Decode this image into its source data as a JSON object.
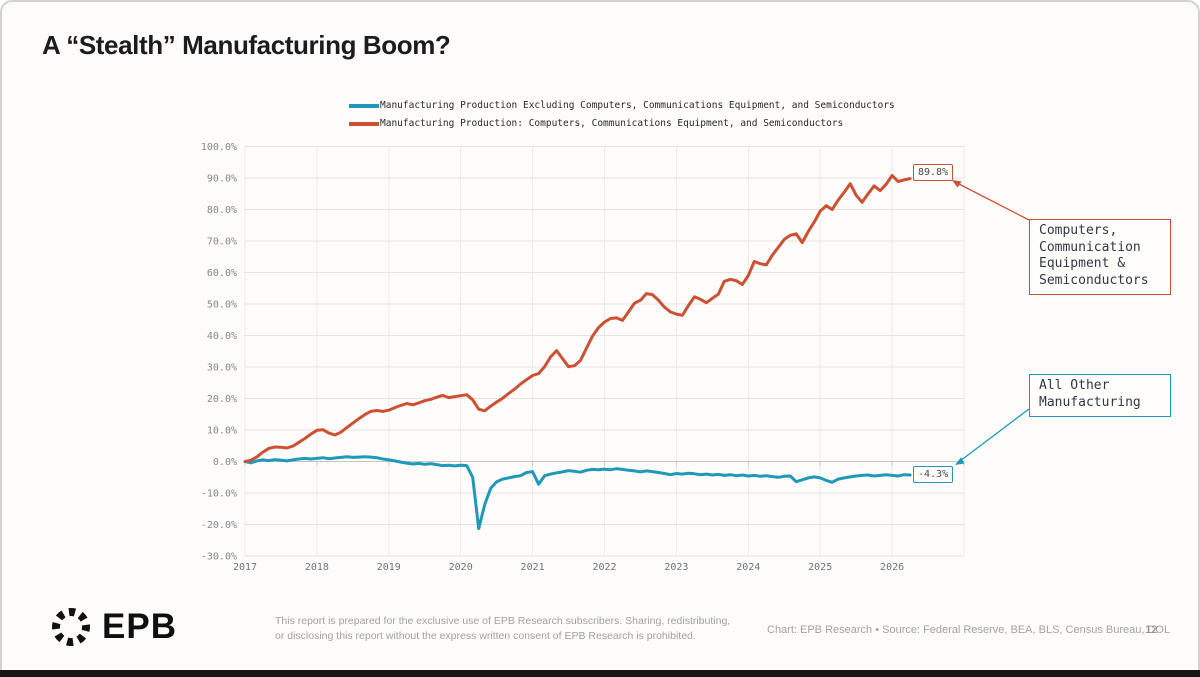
{
  "title": "A “Stealth” Manufacturing Boom?",
  "legend": [
    {
      "label": "Manufacturing Production Excluding Computers, Communications Equipment, and Semiconductors",
      "color": "#1f99b8"
    },
    {
      "label": "Manufacturing Production: Computers, Communications Equipment, and Semiconductors",
      "color": "#cd5033"
    }
  ],
  "annotations": {
    "orange_end_label": "89.8%",
    "blue_end_label": "-4.3%",
    "callout_computers": "Computers,\nCommunication\nEquipment &\nSemiconductors",
    "callout_other": "All Other\nManufacturing"
  },
  "footer": {
    "logo_text": "EPB",
    "disclaimer_line1": "This report is prepared for the exclusive use of EPB Research subscribers. Sharing, redistributing,",
    "disclaimer_line2": "or disclosing this report without the express written consent of EPB Research is prohibited.",
    "credits": "Chart: EPB Research  •  Source: Federal Reserve, BEA, BLS, Census Bureau, DOL",
    "page_number": "12"
  },
  "chart_data": {
    "type": "line",
    "title": "",
    "xlabel": "",
    "ylabel": "",
    "x_monthly_start": 2017.0,
    "xlim": [
      2017,
      2027
    ],
    "ylim": [
      -30,
      100
    ],
    "grid": true,
    "legend_position": "top-center",
    "y_ticks": [
      100,
      90,
      80,
      70,
      60,
      50,
      40,
      30,
      20,
      10,
      0,
      -10,
      -20,
      -30
    ],
    "y_tick_labels": [
      "100.0%",
      "90.0%",
      "80.0%",
      "70.0%",
      "60.0%",
      "50.0%",
      "40.0%",
      "30.0%",
      "20.0%",
      "10.0%",
      "0.0%",
      "-10.0%",
      "-20.0%",
      "-30.0%"
    ],
    "x_tick_years": [
      2017,
      2018,
      2019,
      2020,
      2021,
      2022,
      2023,
      2024,
      2025,
      2026
    ],
    "x_tick_labels": [
      "2017",
      "2018",
      "2019",
      "2020",
      "2021",
      "2022",
      "2023",
      "2024",
      "2025",
      "2026"
    ],
    "x_grid_years": [
      2017,
      2018,
      2019,
      2020,
      2021,
      2022,
      2023,
      2024,
      2025,
      2026,
      2027
    ],
    "series": [
      {
        "id": "all-other-manufacturing",
        "name": "Manufacturing Production Excluding Computers, Communications Equipment, and Semiconductors",
        "color": "#1f99b8",
        "end_value_label": "-4.3%",
        "values": [
          0.0,
          -0.4,
          0.2,
          0.5,
          0.3,
          0.6,
          0.4,
          0.2,
          0.5,
          0.8,
          1.0,
          0.8,
          1.0,
          1.2,
          0.9,
          1.1,
          1.3,
          1.5,
          1.3,
          1.4,
          1.5,
          1.4,
          1.2,
          0.8,
          0.5,
          0.2,
          -0.2,
          -0.5,
          -0.8,
          -0.6,
          -0.9,
          -0.7,
          -1.0,
          -1.3,
          -1.2,
          -1.4,
          -1.2,
          -1.3,
          -5.0,
          -21.3,
          -13.7,
          -8.5,
          -6.4,
          -5.6,
          -5.2,
          -4.8,
          -4.5,
          -3.5,
          -3.2,
          -7.2,
          -4.5,
          -4.0,
          -3.6,
          -3.3,
          -2.9,
          -3.1,
          -3.4,
          -2.8,
          -2.5,
          -2.6,
          -2.4,
          -2.6,
          -2.3,
          -2.5,
          -2.8,
          -3.0,
          -3.3,
          -3.0,
          -3.2,
          -3.5,
          -3.8,
          -4.2,
          -3.8,
          -4.0,
          -3.7,
          -3.9,
          -4.2,
          -4.0,
          -4.3,
          -4.1,
          -4.4,
          -4.2,
          -4.5,
          -4.3,
          -4.6,
          -4.4,
          -4.7,
          -4.5,
          -4.8,
          -5.0,
          -4.7,
          -4.6,
          -6.4,
          -5.8,
          -5.2,
          -4.9,
          -5.2,
          -6.0,
          -6.6,
          -5.6,
          -5.2,
          -4.9,
          -4.6,
          -4.4,
          -4.3,
          -4.6,
          -4.4,
          -4.2,
          -4.4,
          -4.6,
          -4.2,
          -4.3
        ]
      },
      {
        "id": "computers-comm-semis",
        "name": "Manufacturing Production: Computers, Communications Equipment, and Semiconductors",
        "color": "#cd5033",
        "end_value_label": "89.8%",
        "values": [
          0.0,
          0.4,
          1.5,
          3.0,
          4.2,
          4.6,
          4.5,
          4.3,
          4.9,
          6.1,
          7.3,
          8.7,
          9.9,
          10.1,
          9.0,
          8.4,
          9.3,
          10.8,
          12.2,
          13.6,
          14.9,
          15.9,
          16.2,
          15.9,
          16.3,
          17.1,
          17.8,
          18.4,
          18.0,
          18.6,
          19.3,
          19.7,
          20.4,
          21.0,
          20.3,
          20.6,
          20.9,
          21.2,
          19.6,
          16.6,
          16.1,
          17.6,
          18.9,
          20.1,
          21.6,
          23.0,
          24.6,
          26.0,
          27.3,
          27.9,
          30.1,
          33.2,
          35.2,
          32.6,
          30.1,
          30.4,
          32.1,
          36.0,
          39.8,
          42.5,
          44.3,
          45.4,
          45.6,
          44.8,
          47.5,
          50.3,
          51.2,
          53.3,
          53.0,
          51.2,
          49.0,
          47.5,
          46.8,
          46.4,
          49.5,
          52.3,
          51.5,
          50.4,
          51.8,
          53.1,
          57.2,
          57.8,
          57.4,
          56.2,
          59.0,
          63.5,
          62.8,
          62.4,
          65.5,
          68.0,
          70.5,
          71.8,
          72.3,
          69.5,
          73.0,
          76.0,
          79.5,
          81.2,
          80.0,
          83.0,
          85.5,
          88.2,
          84.5,
          82.3,
          85.0,
          87.5,
          86.0,
          88.0,
          90.8,
          88.9,
          89.4,
          89.8
        ]
      }
    ]
  }
}
